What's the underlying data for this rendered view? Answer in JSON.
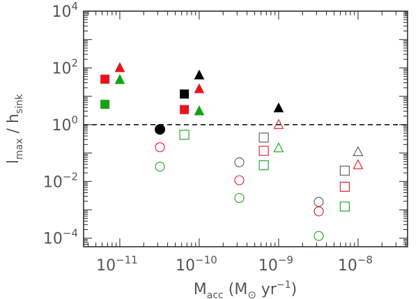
{
  "chart_data": {
    "type": "scatter",
    "x_scale": "log",
    "y_scale": "log",
    "xlim": [
      3.5e-12,
      4.2e-08
    ],
    "ylim": [
      5e-05,
      10000
    ],
    "x_ticks": [
      {
        "value": 1e-11,
        "base": "10",
        "exp": "−11"
      },
      {
        "value": 1e-10,
        "base": "10",
        "exp": "−10"
      },
      {
        "value": 1e-09,
        "base": "10",
        "exp": "−9"
      },
      {
        "value": 1e-08,
        "base": "10",
        "exp": "−8"
      }
    ],
    "y_ticks": [
      {
        "value": 0.0001,
        "base": "10",
        "exp": "−4"
      },
      {
        "value": 0.01,
        "base": "10",
        "exp": "−2"
      },
      {
        "value": 1,
        "base": "10",
        "exp": "0"
      },
      {
        "value": 100,
        "base": "10",
        "exp": "2"
      },
      {
        "value": 10000,
        "base": "10",
        "exp": "4"
      }
    ],
    "xlabel": {
      "main": "M",
      "sub": "acc",
      "rest": " (M",
      "sun": "⊙",
      "unit": " yr",
      "unit_exp": "−1",
      "close": ")"
    },
    "ylabel": {
      "l": "l",
      "l_sub": "max",
      "sep": " / ",
      "h": "h",
      "h_sub": "sink"
    },
    "reference_line": {
      "y": 1,
      "style": "dashed",
      "color": "#000000"
    },
    "colors": {
      "black": "#000000",
      "red": "#e8141c",
      "green": "#16a016"
    },
    "series": [
      {
        "marker": "square",
        "fill": "filled",
        "color": "#e8141c",
        "x": 6.5e-12,
        "y": 40
      },
      {
        "marker": "square",
        "fill": "filled",
        "color": "#16a016",
        "x": 6.5e-12,
        "y": 5.2
      },
      {
        "marker": "triangle",
        "fill": "filled",
        "color": "#e8141c",
        "x": 1e-11,
        "y": 100
      },
      {
        "marker": "triangle",
        "fill": "filled",
        "color": "#16a016",
        "x": 1e-11,
        "y": 38
      },
      {
        "marker": "circle",
        "fill": "filled",
        "color": "#000000",
        "x": 3.2e-11,
        "y": 0.68
      },
      {
        "marker": "circle",
        "fill": "open",
        "color": "#e8141c",
        "x": 3.2e-11,
        "y": 0.16
      },
      {
        "marker": "circle",
        "fill": "open",
        "color": "#16a016",
        "x": 3.2e-11,
        "y": 0.033
      },
      {
        "marker": "square",
        "fill": "filled",
        "color": "#000000",
        "x": 6.5e-11,
        "y": 12
      },
      {
        "marker": "square",
        "fill": "filled",
        "color": "#e8141c",
        "x": 6.5e-11,
        "y": 3.4
      },
      {
        "marker": "square",
        "fill": "open",
        "color": "#16a016",
        "x": 6.5e-11,
        "y": 0.44
      },
      {
        "marker": "triangle",
        "fill": "filled",
        "color": "#000000",
        "x": 1e-10,
        "y": 55
      },
      {
        "marker": "triangle",
        "fill": "filled",
        "color": "#e8141c",
        "x": 1e-10,
        "y": 18
      },
      {
        "marker": "triangle",
        "fill": "filled",
        "color": "#16a016",
        "x": 1e-10,
        "y": 3.0
      },
      {
        "marker": "circle",
        "fill": "open",
        "color": "#555555",
        "x": 3.2e-10,
        "y": 0.047
      },
      {
        "marker": "circle",
        "fill": "open",
        "color": "#e8141c",
        "x": 3.2e-10,
        "y": 0.011
      },
      {
        "marker": "circle",
        "fill": "open",
        "color": "#16a016",
        "x": 3.2e-10,
        "y": 0.0026
      },
      {
        "marker": "square",
        "fill": "open",
        "color": "#555555",
        "x": 6.5e-10,
        "y": 0.35
      },
      {
        "marker": "square",
        "fill": "open",
        "color": "#e8141c",
        "x": 6.5e-10,
        "y": 0.12
      },
      {
        "marker": "square",
        "fill": "open",
        "color": "#16a016",
        "x": 6.5e-10,
        "y": 0.037
      },
      {
        "marker": "triangle",
        "fill": "filled",
        "color": "#000000",
        "x": 1e-09,
        "y": 3.8
      },
      {
        "marker": "triangle",
        "fill": "open",
        "color": "#e8141c",
        "x": 1e-09,
        "y": 1.0
      },
      {
        "marker": "triangle",
        "fill": "open",
        "color": "#16a016",
        "x": 1e-09,
        "y": 0.15
      },
      {
        "marker": "circle",
        "fill": "open",
        "color": "#555555",
        "x": 3.2e-09,
        "y": 0.0019
      },
      {
        "marker": "circle",
        "fill": "open",
        "color": "#e8141c",
        "x": 3.2e-09,
        "y": 0.00088
      },
      {
        "marker": "circle",
        "fill": "open",
        "color": "#16a016",
        "x": 3.2e-09,
        "y": 0.00012
      },
      {
        "marker": "square",
        "fill": "open",
        "color": "#555555",
        "x": 6.8e-09,
        "y": 0.024
      },
      {
        "marker": "square",
        "fill": "open",
        "color": "#e8141c",
        "x": 6.8e-09,
        "y": 0.0065
      },
      {
        "marker": "square",
        "fill": "open",
        "color": "#16a016",
        "x": 6.8e-09,
        "y": 0.0013
      },
      {
        "marker": "triangle",
        "fill": "open",
        "color": "#555555",
        "x": 1e-08,
        "y": 0.11
      },
      {
        "marker": "triangle",
        "fill": "open",
        "color": "#e8141c",
        "x": 1e-08,
        "y": 0.038
      }
    ]
  }
}
